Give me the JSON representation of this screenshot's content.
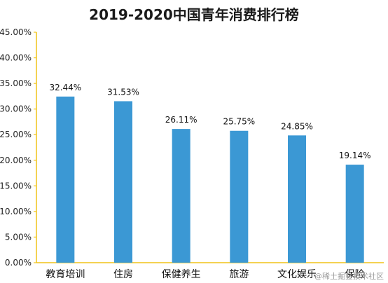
{
  "chart_data": {
    "type": "bar",
    "title": "2019-2020中国青年消费排行榜",
    "categories": [
      "教育培训",
      "住房",
      "保健养生",
      "旅游",
      "文化娱乐",
      "保险"
    ],
    "values": [
      32.44,
      31.53,
      26.11,
      25.75,
      24.85,
      19.14
    ],
    "value_labels": [
      "32.44%",
      "31.53%",
      "26.11%",
      "25.75%",
      "24.85%",
      "19.14%"
    ],
    "ylim": [
      0,
      45
    ],
    "yticks": [
      0,
      5,
      10,
      15,
      20,
      25,
      30,
      35,
      40,
      45
    ],
    "ytick_labels": [
      "0.00%",
      "5.00%",
      "10.00%",
      "15.00%",
      "20.00%",
      "25.00%",
      "30.00%",
      "35.00%",
      "40.00%",
      "45.00%"
    ],
    "xlabel": "",
    "ylabel": "",
    "grid": false,
    "legend": "none",
    "colors": {
      "bar": "#3b98d4",
      "axis": "#f0c419"
    }
  },
  "watermark": "@稀土掘金技术社区"
}
